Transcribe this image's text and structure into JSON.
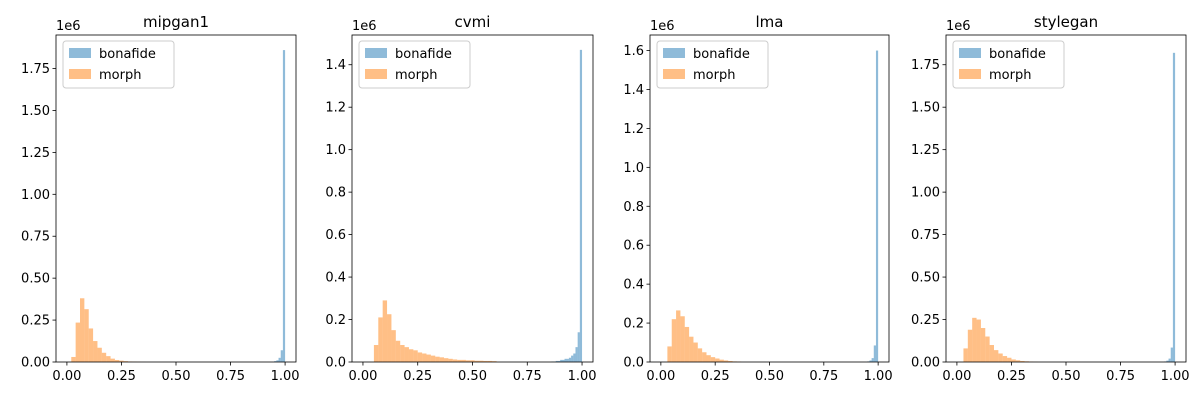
{
  "figure": {
    "panels": [
      "mipgan1",
      "cvmi",
      "lma",
      "stylegan"
    ]
  },
  "chart_data": [
    {
      "type": "bar",
      "title": "mipgan1",
      "xlim": [
        -0.05,
        1.05
      ],
      "ylim": [
        0,
        1950000
      ],
      "y_offset_label": "1e6",
      "xticks": [
        0.0,
        0.25,
        0.5,
        0.75,
        1.0
      ],
      "xtick_labels": [
        "0.00",
        "0.25",
        "0.50",
        "0.75",
        "1.00"
      ],
      "yticks": [
        0,
        250000,
        500000,
        750000,
        1000000,
        1250000,
        1500000,
        1750000
      ],
      "ytick_labels": [
        "0.00",
        "0.25",
        "0.50",
        "0.75",
        "1.00",
        "1.25",
        "1.50",
        "1.75"
      ],
      "legend": {
        "position": "top-left"
      },
      "series": [
        {
          "name": "bonafide",
          "color": "#1f77b4",
          "bin_edges": [
            0.95,
            0.96,
            0.97,
            0.98,
            0.99,
            1.0
          ],
          "counts": [
            5000,
            10000,
            25000,
            70000,
            1860000
          ]
        },
        {
          "name": "morph",
          "color": "#ff7f0e",
          "bin_edges": [
            0.02,
            0.04,
            0.06,
            0.08,
            0.1,
            0.12,
            0.14,
            0.16,
            0.18,
            0.2,
            0.22,
            0.24,
            0.26,
            0.28,
            0.3,
            0.32,
            0.34,
            0.36
          ],
          "counts": [
            30000,
            235000,
            380000,
            315000,
            200000,
            125000,
            85000,
            55000,
            35000,
            20000,
            12000,
            8000,
            5000,
            3000,
            2000,
            1000,
            500
          ]
        }
      ]
    },
    {
      "type": "bar",
      "title": "cvmi",
      "xlim": [
        -0.05,
        1.05
      ],
      "ylim": [
        0,
        1540000
      ],
      "y_offset_label": "1e6",
      "xticks": [
        0.0,
        0.25,
        0.5,
        0.75,
        1.0
      ],
      "xtick_labels": [
        "0.00",
        "0.25",
        "0.50",
        "0.75",
        "1.00"
      ],
      "yticks": [
        0,
        200000,
        400000,
        600000,
        800000,
        1000000,
        1200000,
        1400000
      ],
      "ytick_labels": [
        "0.0",
        "0.2",
        "0.4",
        "0.6",
        "0.8",
        "1.0",
        "1.2",
        "1.4"
      ],
      "legend": {
        "position": "top-left"
      },
      "series": [
        {
          "name": "bonafide",
          "color": "#1f77b4",
          "bin_edges": [
            0.86,
            0.88,
            0.9,
            0.92,
            0.94,
            0.95,
            0.96,
            0.97,
            0.98,
            0.99,
            1.0
          ],
          "counts": [
            2000,
            5000,
            10000,
            15000,
            20000,
            30000,
            40000,
            70000,
            140000,
            1470000
          ]
        },
        {
          "name": "morph",
          "color": "#ff7f0e",
          "bin_edges": [
            0.05,
            0.07,
            0.09,
            0.11,
            0.13,
            0.15,
            0.17,
            0.19,
            0.21,
            0.23,
            0.25,
            0.27,
            0.29,
            0.31,
            0.33,
            0.35,
            0.37,
            0.39,
            0.41,
            0.43,
            0.45,
            0.47,
            0.49,
            0.51,
            0.53,
            0.55,
            0.57,
            0.59,
            0.61
          ],
          "counts": [
            80000,
            210000,
            290000,
            225000,
            150000,
            100000,
            80000,
            70000,
            60000,
            55000,
            45000,
            40000,
            35000,
            30000,
            25000,
            22000,
            18000,
            15000,
            12000,
            10000,
            10000,
            8000,
            8000,
            6000,
            6000,
            5000,
            5000,
            4000
          ]
        }
      ]
    },
    {
      "type": "bar",
      "title": "lma",
      "xlim": [
        -0.05,
        1.05
      ],
      "ylim": [
        0,
        1680000
      ],
      "y_offset_label": "1e6",
      "xticks": [
        0.0,
        0.25,
        0.5,
        0.75,
        1.0
      ],
      "xtick_labels": [
        "0.00",
        "0.25",
        "0.50",
        "0.75",
        "1.00"
      ],
      "yticks": [
        0,
        200000,
        400000,
        600000,
        800000,
        1000000,
        1200000,
        1400000,
        1600000
      ],
      "ytick_labels": [
        "0.0",
        "0.2",
        "0.4",
        "0.6",
        "0.8",
        "1.0",
        "1.2",
        "1.4",
        "1.6"
      ],
      "legend": {
        "position": "top-left"
      },
      "series": [
        {
          "name": "bonafide",
          "color": "#1f77b4",
          "bin_edges": [
            0.95,
            0.96,
            0.97,
            0.98,
            0.99,
            1.0
          ],
          "counts": [
            3000,
            8000,
            20000,
            85000,
            1600000
          ]
        },
        {
          "name": "morph",
          "color": "#ff7f0e",
          "bin_edges": [
            0.03,
            0.05,
            0.07,
            0.09,
            0.11,
            0.13,
            0.15,
            0.17,
            0.19,
            0.21,
            0.23,
            0.25,
            0.27,
            0.29,
            0.31,
            0.33,
            0.35,
            0.37
          ],
          "counts": [
            80000,
            220000,
            265000,
            235000,
            180000,
            130000,
            100000,
            70000,
            50000,
            35000,
            25000,
            18000,
            12000,
            8000,
            5000,
            3000,
            2000
          ]
        }
      ]
    },
    {
      "type": "bar",
      "title": "stylegan",
      "xlim": [
        -0.05,
        1.05
      ],
      "ylim": [
        0,
        1925000
      ],
      "y_offset_label": "1e6",
      "xticks": [
        0.0,
        0.25,
        0.5,
        0.75,
        1.0
      ],
      "xtick_labels": [
        "0.00",
        "0.25",
        "0.50",
        "0.75",
        "1.00"
      ],
      "yticks": [
        0,
        250000,
        500000,
        750000,
        1000000,
        1250000,
        1500000,
        1750000
      ],
      "ytick_labels": [
        "0.00",
        "0.25",
        "0.50",
        "0.75",
        "1.00",
        "1.25",
        "1.50",
        "1.75"
      ],
      "legend": {
        "position": "top-left"
      },
      "series": [
        {
          "name": "bonafide",
          "color": "#1f77b4",
          "bin_edges": [
            0.95,
            0.96,
            0.97,
            0.98,
            0.99,
            1.0
          ],
          "counts": [
            3000,
            8000,
            20000,
            85000,
            1820000
          ]
        },
        {
          "name": "morph",
          "color": "#ff7f0e",
          "bin_edges": [
            0.03,
            0.05,
            0.07,
            0.09,
            0.11,
            0.13,
            0.15,
            0.17,
            0.19,
            0.21,
            0.23,
            0.25,
            0.27,
            0.29,
            0.31,
            0.33,
            0.35,
            0.37
          ],
          "counts": [
            80000,
            190000,
            260000,
            250000,
            200000,
            150000,
            100000,
            70000,
            50000,
            35000,
            25000,
            15000,
            10000,
            6000,
            4000,
            2000,
            1000
          ]
        }
      ]
    }
  ]
}
